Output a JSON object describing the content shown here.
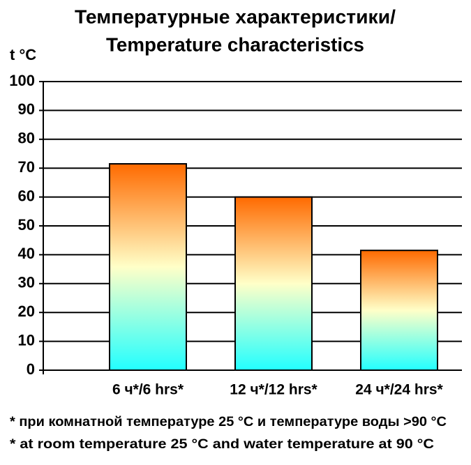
{
  "chart_data": {
    "type": "bar",
    "title": [
      "Температурные характеристики/",
      "Temperature characteristics"
    ],
    "y_label": "t °C",
    "categories": [
      "6 ч*/6 hrs*",
      "12 ч*/12 hrs*",
      "24 ч*/24 hrs*"
    ],
    "values": [
      71.5,
      60,
      41.5
    ],
    "ylim": [
      0,
      100
    ],
    "yticks": [
      0,
      10,
      20,
      30,
      40,
      50,
      60,
      70,
      80,
      90,
      100
    ],
    "grid": true,
    "notes": [
      "* при комнатной температуре 25 °C и температуре воды >90 °C",
      "* at room temperature 25 °C and water temperature at 90 °C"
    ]
  }
}
